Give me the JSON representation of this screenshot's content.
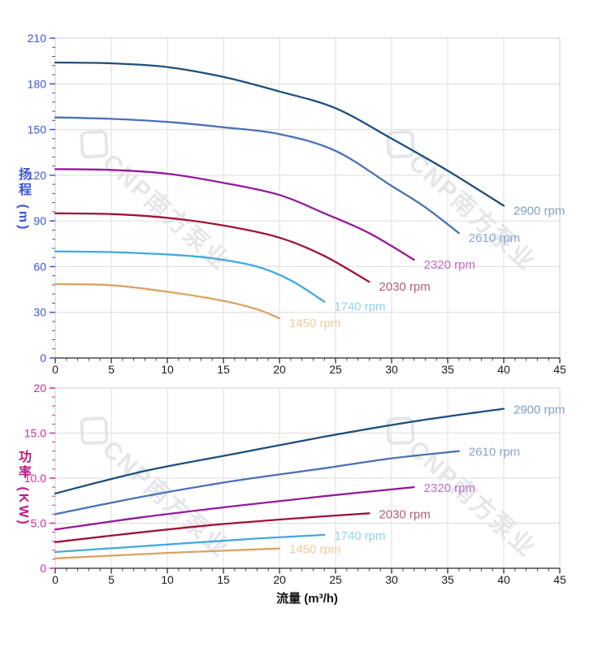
{
  "watermark": {
    "text": "CNP南方泵业"
  },
  "chart_data": [
    {
      "type": "line",
      "title": "",
      "xlabel": "流量 (m³/h)",
      "ylabel": "扬程 (m)",
      "xlim": [
        0,
        45
      ],
      "ylim": [
        0,
        210
      ],
      "x_tick_step_major": 5,
      "x_tick_step_minor": 1,
      "y_tick_step_major": 30,
      "y_tick_step_minor": 6,
      "x_tick_labels": [
        "0",
        "5",
        "10",
        "15",
        "20",
        "25",
        "30",
        "35",
        "40",
        "45"
      ],
      "y_tick_labels": [
        "0",
        "30",
        "60",
        "90",
        "120",
        "150",
        "180",
        "210"
      ],
      "grid": true,
      "legend_position": "curve-end-labels",
      "axis_color": "#3c55d6",
      "series": [
        {
          "name": "2900 rpm",
          "color": "#1d4f7c",
          "label_color": "#7f9fc2",
          "points": [
            [
              0,
              194
            ],
            [
              5,
              193.5
            ],
            [
              10,
              191
            ],
            [
              15,
              184.5
            ],
            [
              20,
              175
            ],
            [
              25,
              164
            ],
            [
              30,
              144
            ],
            [
              35,
              123
            ],
            [
              40,
              100
            ]
          ]
        },
        {
          "name": "2610 rpm",
          "color": "#4a71b4",
          "label_color": "#8ba3cf",
          "points": [
            [
              0,
              158
            ],
            [
              5,
              157
            ],
            [
              10,
              155
            ],
            [
              15,
              151.5
            ],
            [
              20,
              147
            ],
            [
              25,
              136
            ],
            [
              30,
              113
            ],
            [
              33,
              99
            ],
            [
              36,
              82
            ]
          ]
        },
        {
          "name": "2320 rpm",
          "color": "#951a9b",
          "label_color": "#c06cc8",
          "points": [
            [
              0,
              124
            ],
            [
              5,
              123.5
            ],
            [
              10,
              121
            ],
            [
              15,
              115
            ],
            [
              20,
              107
            ],
            [
              24,
              95
            ],
            [
              28,
              82
            ],
            [
              32,
              64.5
            ]
          ]
        },
        {
          "name": "2030 rpm",
          "color": "#a01335",
          "label_color": "#ad5f77",
          "points": [
            [
              0,
              95
            ],
            [
              5,
              94.5
            ],
            [
              10,
              92
            ],
            [
              15,
              87
            ],
            [
              20,
              79
            ],
            [
              24,
              67
            ],
            [
              28,
              50
            ]
          ]
        },
        {
          "name": "1740 rpm",
          "color": "#41a9de",
          "label_color": "#8ed1f2",
          "points": [
            [
              0,
              70
            ],
            [
              5,
              69.5
            ],
            [
              10,
              68
            ],
            [
              14,
              65.5
            ],
            [
              18,
              60
            ],
            [
              21,
              51
            ],
            [
              24,
              37
            ]
          ]
        },
        {
          "name": "1450 rpm",
          "color": "#d9a364",
          "label_color": "#ecca9e",
          "points": [
            [
              0,
              48.5
            ],
            [
              5,
              47.8
            ],
            [
              10,
              43.5
            ],
            [
              15,
              37.5
            ],
            [
              18,
              32
            ],
            [
              20,
              26
            ]
          ]
        }
      ]
    },
    {
      "type": "line",
      "title": "",
      "xlabel": "流量 (m³/h)",
      "ylabel": "功率 (KW)",
      "xlim": [
        0,
        45
      ],
      "ylim": [
        0,
        20
      ],
      "x_tick_step_major": 5,
      "x_tick_step_minor": 1,
      "y_tick_step_major": 5,
      "y_tick_step_minor": 1,
      "x_tick_labels": [
        "0",
        "5",
        "10",
        "15",
        "20",
        "25",
        "30",
        "35",
        "40",
        "45"
      ],
      "y_tick_labels": [
        "0",
        "5.0",
        "10.0",
        "15.0",
        "20"
      ],
      "grid": true,
      "legend_position": "curve-end-labels",
      "axis_color": "#cb2f93",
      "series": [
        {
          "name": "2900 rpm",
          "color": "#1d4f7c",
          "label_color": "#7f9fc2",
          "points": [
            [
              0,
              8.3
            ],
            [
              8,
              10.8
            ],
            [
              16,
              12.7
            ],
            [
              24,
              14.6
            ],
            [
              32,
              16.3
            ],
            [
              40,
              17.7
            ]
          ]
        },
        {
          "name": "2610 rpm",
          "color": "#4a71b4",
          "label_color": "#8ba3cf",
          "points": [
            [
              0,
              6.0
            ],
            [
              8,
              8.0
            ],
            [
              16,
              9.7
            ],
            [
              24,
              11.1
            ],
            [
              30,
              12.2
            ],
            [
              36,
              13.0
            ]
          ]
        },
        {
          "name": "2320 rpm",
          "color": "#951a9b",
          "label_color": "#c06cc8",
          "points": [
            [
              0,
              4.3
            ],
            [
              8,
              5.7
            ],
            [
              16,
              6.9
            ],
            [
              24,
              8.0
            ],
            [
              32,
              9.0
            ]
          ]
        },
        {
          "name": "2030 rpm",
          "color": "#a01335",
          "label_color": "#ad5f77",
          "points": [
            [
              0,
              2.9
            ],
            [
              7,
              3.9
            ],
            [
              14,
              4.8
            ],
            [
              21,
              5.5
            ],
            [
              28,
              6.1
            ]
          ]
        },
        {
          "name": "1740 rpm",
          "color": "#41a9de",
          "label_color": "#8ed1f2",
          "points": [
            [
              0,
              1.8
            ],
            [
              6,
              2.3
            ],
            [
              12,
              2.8
            ],
            [
              18,
              3.3
            ],
            [
              24,
              3.7
            ]
          ]
        },
        {
          "name": "1450 rpm",
          "color": "#d9a364",
          "label_color": "#ecca9e",
          "points": [
            [
              0,
              1.1
            ],
            [
              5,
              1.4
            ],
            [
              10,
              1.7
            ],
            [
              15,
              1.95
            ],
            [
              20,
              2.2
            ]
          ]
        }
      ]
    }
  ]
}
